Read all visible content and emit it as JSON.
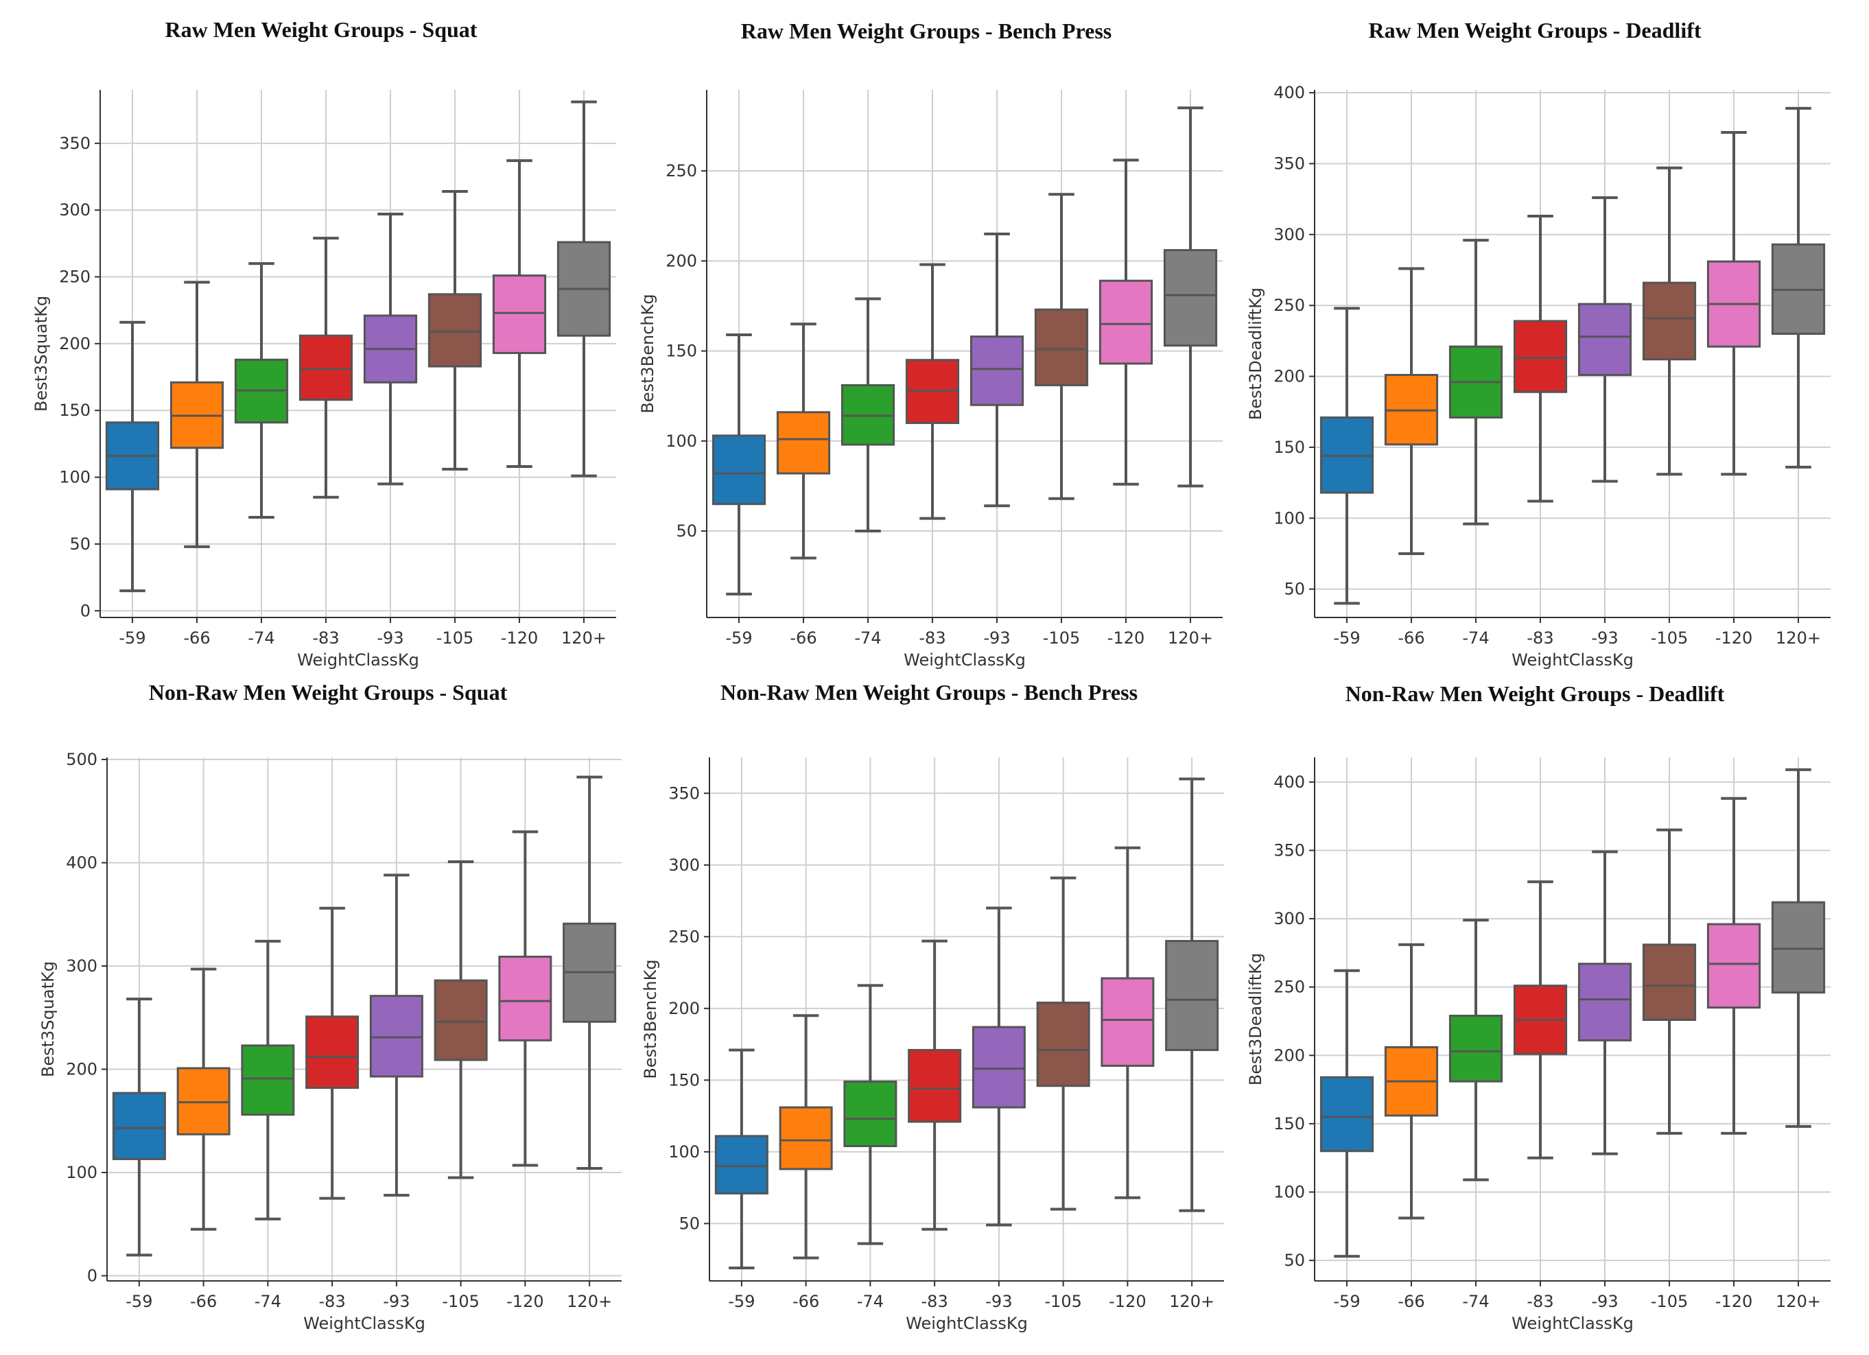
{
  "chart_data": [
    {
      "type": "boxplot",
      "title": "Raw Men Weight Groups - Squat",
      "xlabel": "WeightClassKg",
      "ylabel": "Best3SquatKg",
      "ylim": [
        -5,
        390
      ],
      "yticks": [
        0,
        50,
        100,
        150,
        200,
        250,
        300,
        350
      ],
      "categories": [
        "-59",
        "-66",
        "-74",
        "-83",
        "-93",
        "-105",
        "-120",
        "120+"
      ],
      "boxes": [
        {
          "min": 15,
          "q1": 91,
          "median": 116,
          "q3": 141,
          "max": 216
        },
        {
          "min": 48,
          "q1": 122,
          "median": 146,
          "q3": 171,
          "max": 246
        },
        {
          "min": 70,
          "q1": 141,
          "median": 165,
          "q3": 188,
          "max": 260
        },
        {
          "min": 85,
          "q1": 158,
          "median": 181,
          "q3": 206,
          "max": 279
        },
        {
          "min": 95,
          "q1": 171,
          "median": 196,
          "q3": 221,
          "max": 297
        },
        {
          "min": 106,
          "q1": 183,
          "median": 209,
          "q3": 237,
          "max": 314
        },
        {
          "min": 108,
          "q1": 193,
          "median": 223,
          "q3": 251,
          "max": 337
        },
        {
          "min": 101,
          "q1": 206,
          "median": 241,
          "q3": 276,
          "max": 381
        }
      ]
    },
    {
      "type": "boxplot",
      "title": "Raw Men Weight Groups - Bench Press",
      "xlabel": "WeightClassKg",
      "ylabel": "Best3BenchKg",
      "ylim": [
        2,
        295
      ],
      "yticks": [
        50,
        100,
        150,
        200,
        250
      ],
      "categories": [
        "-59",
        "-66",
        "-74",
        "-83",
        "-93",
        "-105",
        "-120",
        "120+"
      ],
      "boxes": [
        {
          "min": 15,
          "q1": 65,
          "median": 82,
          "q3": 103,
          "max": 159
        },
        {
          "min": 35,
          "q1": 82,
          "median": 101,
          "q3": 116,
          "max": 165
        },
        {
          "min": 50,
          "q1": 98,
          "median": 114,
          "q3": 131,
          "max": 179
        },
        {
          "min": 57,
          "q1": 110,
          "median": 128,
          "q3": 145,
          "max": 198
        },
        {
          "min": 64,
          "q1": 120,
          "median": 140,
          "q3": 158,
          "max": 215
        },
        {
          "min": 68,
          "q1": 131,
          "median": 151,
          "q3": 173,
          "max": 237
        },
        {
          "min": 76,
          "q1": 143,
          "median": 165,
          "q3": 189,
          "max": 256
        },
        {
          "min": 75,
          "q1": 153,
          "median": 181,
          "q3": 206,
          "max": 285
        }
      ]
    },
    {
      "type": "boxplot",
      "title": "Raw Men Weight Groups - Deadlift",
      "xlabel": "WeightClassKg",
      "ylabel": "Best3DeadliftKg",
      "ylim": [
        30,
        402
      ],
      "yticks": [
        50,
        100,
        150,
        200,
        250,
        300,
        350,
        400
      ],
      "categories": [
        "-59",
        "-66",
        "-74",
        "-83",
        "-93",
        "-105",
        "-120",
        "120+"
      ],
      "boxes": [
        {
          "min": 40,
          "q1": 118,
          "median": 144,
          "q3": 171,
          "max": 248
        },
        {
          "min": 75,
          "q1": 152,
          "median": 176,
          "q3": 201,
          "max": 276
        },
        {
          "min": 96,
          "q1": 171,
          "median": 196,
          "q3": 221,
          "max": 296
        },
        {
          "min": 112,
          "q1": 189,
          "median": 213,
          "q3": 239,
          "max": 313
        },
        {
          "min": 126,
          "q1": 201,
          "median": 228,
          "q3": 251,
          "max": 326
        },
        {
          "min": 131,
          "q1": 212,
          "median": 241,
          "q3": 266,
          "max": 347
        },
        {
          "min": 131,
          "q1": 221,
          "median": 251,
          "q3": 281,
          "max": 372
        },
        {
          "min": 136,
          "q1": 230,
          "median": 261,
          "q3": 293,
          "max": 389
        }
      ]
    },
    {
      "type": "boxplot",
      "title": "Non-Raw Men Weight Groups - Squat",
      "xlabel": "WeightClassKg",
      "ylabel": "Best3SquatKg",
      "ylim": [
        -5,
        502
      ],
      "yticks": [
        0,
        100,
        200,
        300,
        400,
        500
      ],
      "categories": [
        "-59",
        "-66",
        "-74",
        "-83",
        "-93",
        "-105",
        "-120",
        "120+"
      ],
      "boxes": [
        {
          "min": 20,
          "q1": 113,
          "median": 143,
          "q3": 177,
          "max": 268
        },
        {
          "min": 45,
          "q1": 137,
          "median": 168,
          "q3": 201,
          "max": 297
        },
        {
          "min": 55,
          "q1": 156,
          "median": 191,
          "q3": 223,
          "max": 324
        },
        {
          "min": 75,
          "q1": 182,
          "median": 212,
          "q3": 251,
          "max": 356
        },
        {
          "min": 78,
          "q1": 193,
          "median": 231,
          "q3": 271,
          "max": 388
        },
        {
          "min": 95,
          "q1": 209,
          "median": 246,
          "q3": 286,
          "max": 401
        },
        {
          "min": 107,
          "q1": 228,
          "median": 266,
          "q3": 309,
          "max": 430
        },
        {
          "min": 104,
          "q1": 246,
          "median": 294,
          "q3": 341,
          "max": 483
        }
      ]
    },
    {
      "type": "boxplot",
      "title": "Non-Raw Men Weight Groups - Bench Press",
      "xlabel": "WeightClassKg",
      "ylabel": "Best3BenchKg",
      "ylim": [
        10,
        375
      ],
      "yticks": [
        50,
        100,
        150,
        200,
        250,
        300,
        350
      ],
      "categories": [
        "-59",
        "-66",
        "-74",
        "-83",
        "-93",
        "-105",
        "-120",
        "120+"
      ],
      "boxes": [
        {
          "min": 19,
          "q1": 71,
          "median": 90,
          "q3": 111,
          "max": 171
        },
        {
          "min": 26,
          "q1": 88,
          "median": 108,
          "q3": 131,
          "max": 195
        },
        {
          "min": 36,
          "q1": 104,
          "median": 123,
          "q3": 149,
          "max": 216
        },
        {
          "min": 46,
          "q1": 121,
          "median": 144,
          "q3": 171,
          "max": 247
        },
        {
          "min": 49,
          "q1": 131,
          "median": 158,
          "q3": 187,
          "max": 270
        },
        {
          "min": 60,
          "q1": 146,
          "median": 171,
          "q3": 204,
          "max": 291
        },
        {
          "min": 68,
          "q1": 160,
          "median": 192,
          "q3": 221,
          "max": 312
        },
        {
          "min": 59,
          "q1": 171,
          "median": 206,
          "q3": 247,
          "max": 360
        }
      ]
    },
    {
      "type": "boxplot",
      "title": "Non-Raw Men Weight Groups - Deadlift",
      "xlabel": "WeightClassKg",
      "ylabel": "Best3DeadliftKg",
      "ylim": [
        35,
        418
      ],
      "yticks": [
        50,
        100,
        150,
        200,
        250,
        300,
        350,
        400
      ],
      "categories": [
        "-59",
        "-66",
        "-74",
        "-83",
        "-93",
        "-105",
        "-120",
        "120+"
      ],
      "boxes": [
        {
          "min": 53,
          "q1": 130,
          "median": 155,
          "q3": 184,
          "max": 262
        },
        {
          "min": 81,
          "q1": 156,
          "median": 181,
          "q3": 206,
          "max": 281
        },
        {
          "min": 109,
          "q1": 181,
          "median": 203,
          "q3": 229,
          "max": 299
        },
        {
          "min": 125,
          "q1": 201,
          "median": 226,
          "q3": 251,
          "max": 327
        },
        {
          "min": 128,
          "q1": 211,
          "median": 241,
          "q3": 267,
          "max": 349
        },
        {
          "min": 143,
          "q1": 226,
          "median": 251,
          "q3": 281,
          "max": 365
        },
        {
          "min": 143,
          "q1": 235,
          "median": 267,
          "q3": 296,
          "max": 388
        },
        {
          "min": 148,
          "q1": 246,
          "median": 278,
          "q3": 312,
          "max": 409
        }
      ]
    }
  ],
  "palette": [
    "#1f77b4",
    "#ff7f0e",
    "#2ca02c",
    "#d62728",
    "#9467bd",
    "#8c564b",
    "#e377c2",
    "#7f7f7f"
  ]
}
